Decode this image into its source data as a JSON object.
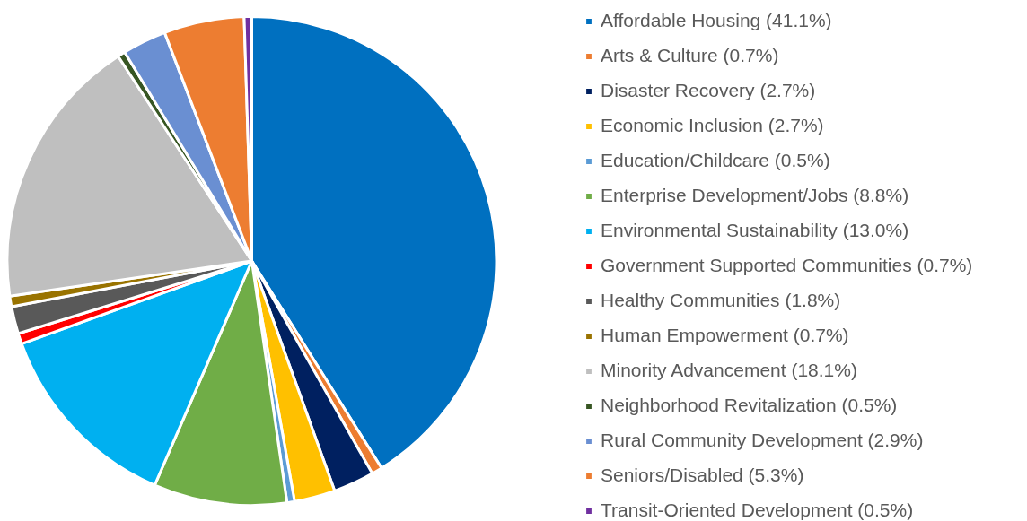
{
  "chart_data": {
    "type": "pie",
    "categories": [
      "Affordable Housing (41.1%)",
      "Arts & Culture (0.7%)",
      "Disaster Recovery (2.7%)",
      "Economic Inclusion (2.7%)",
      "Education/Childcare (0.5%)",
      "Enterprise Development/Jobs (8.8%)",
      "Environmental Sustainability (13.0%)",
      "Government Supported Communities (0.7%)",
      "Healthy Communities (1.8%)",
      "Human Empowerment (0.7%)",
      "Minority Advancement (18.1%)",
      "Neighborhood Revitalization (0.5%)",
      "Rural Community Development (2.9%)",
      "Seniors/Disabled (5.3%)",
      "Transit-Oriented Development (0.5%)"
    ],
    "values": [
      41.1,
      0.7,
      2.7,
      2.7,
      0.5,
      8.8,
      13.0,
      0.7,
      1.8,
      0.7,
      18.1,
      0.5,
      2.9,
      5.3,
      0.5
    ],
    "colors": [
      "#0070c0",
      "#ed7d31",
      "#002060",
      "#ffc000",
      "#5b9bd5",
      "#70ad47",
      "#00b0f0",
      "#ff0000",
      "#595959",
      "#997300",
      "#bfbfbf",
      "#375623",
      "#6a8fd2",
      "#ed7d31",
      "#7030a0"
    ],
    "legend": "right"
  }
}
